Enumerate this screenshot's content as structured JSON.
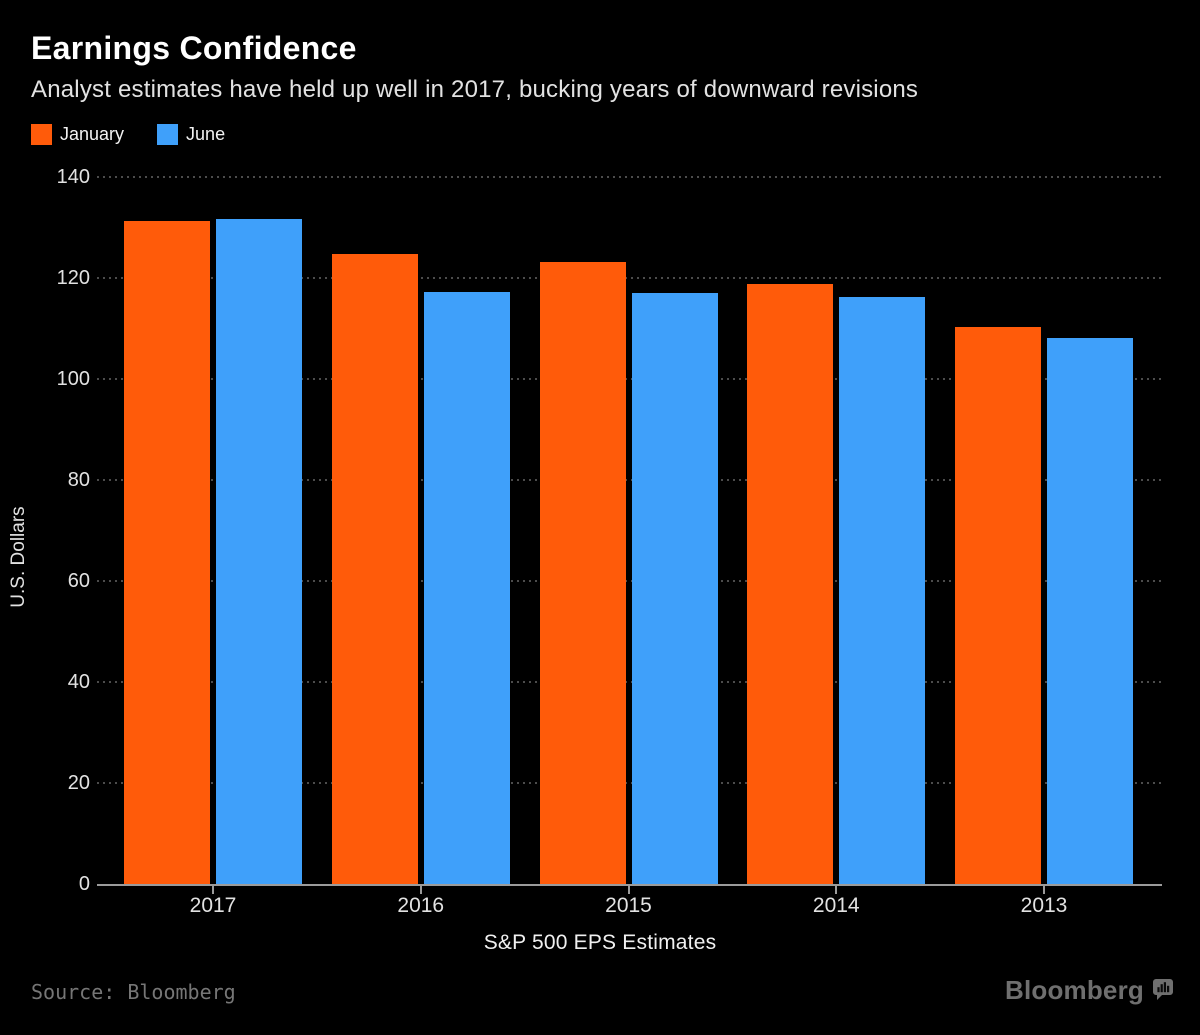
{
  "header": {
    "title": "Earnings Confidence",
    "subtitle": "Analyst estimates have held up well in 2017, bucking years of downward revisions"
  },
  "legend": {
    "items": [
      {
        "label": "January",
        "color": "#FF5B0A"
      },
      {
        "label": "June",
        "color": "#3FA0FA"
      }
    ]
  },
  "axes": {
    "y_title": "U.S. Dollars",
    "x_title": "S&P 500 EPS Estimates",
    "y_tick_labels": [
      "0",
      "20",
      "40",
      "60",
      "80",
      "100",
      "120",
      "140"
    ],
    "x_tick_labels": [
      "2017",
      "2016",
      "2015",
      "2014",
      "2013"
    ]
  },
  "footer": {
    "source": "Source: Bloomberg",
    "brand": "Bloomberg",
    "brand_icon": "bar-chart-speech-bubble-icon"
  },
  "colors": {
    "background": "#000000",
    "january": "#FF5B0A",
    "june": "#3FA0FA",
    "gridline": "#4C4C4C",
    "axis_line": "#9B9B9B",
    "tick_label": "#E2E2E2",
    "title": "#FFFFFF",
    "subtitle": "#E2E2E2",
    "source": "#767676",
    "brand": "#6F6F6F"
  },
  "chart_data": {
    "type": "bar",
    "title": "Earnings Confidence",
    "subtitle": "Analyst estimates have held up well in 2017, bucking years of downward revisions",
    "categories": [
      "2017",
      "2016",
      "2015",
      "2014",
      "2013"
    ],
    "series": [
      {
        "name": "January",
        "color": "#FF5B0A",
        "values": [
          131.2,
          124.8,
          123.1,
          118.8,
          110.3
        ]
      },
      {
        "name": "June",
        "color": "#3FA0FA",
        "values": [
          131.7,
          117.3,
          117.0,
          116.3,
          108.2
        ]
      }
    ],
    "xlabel": "S&P 500 EPS Estimates",
    "ylabel": "U.S. Dollars",
    "ylim": [
      0,
      140
    ],
    "ytick_step": 20,
    "yticks": [
      0,
      20,
      40,
      60,
      80,
      100,
      120,
      140
    ],
    "grid": "dotted-horizontal",
    "legend_position": "top-left"
  }
}
